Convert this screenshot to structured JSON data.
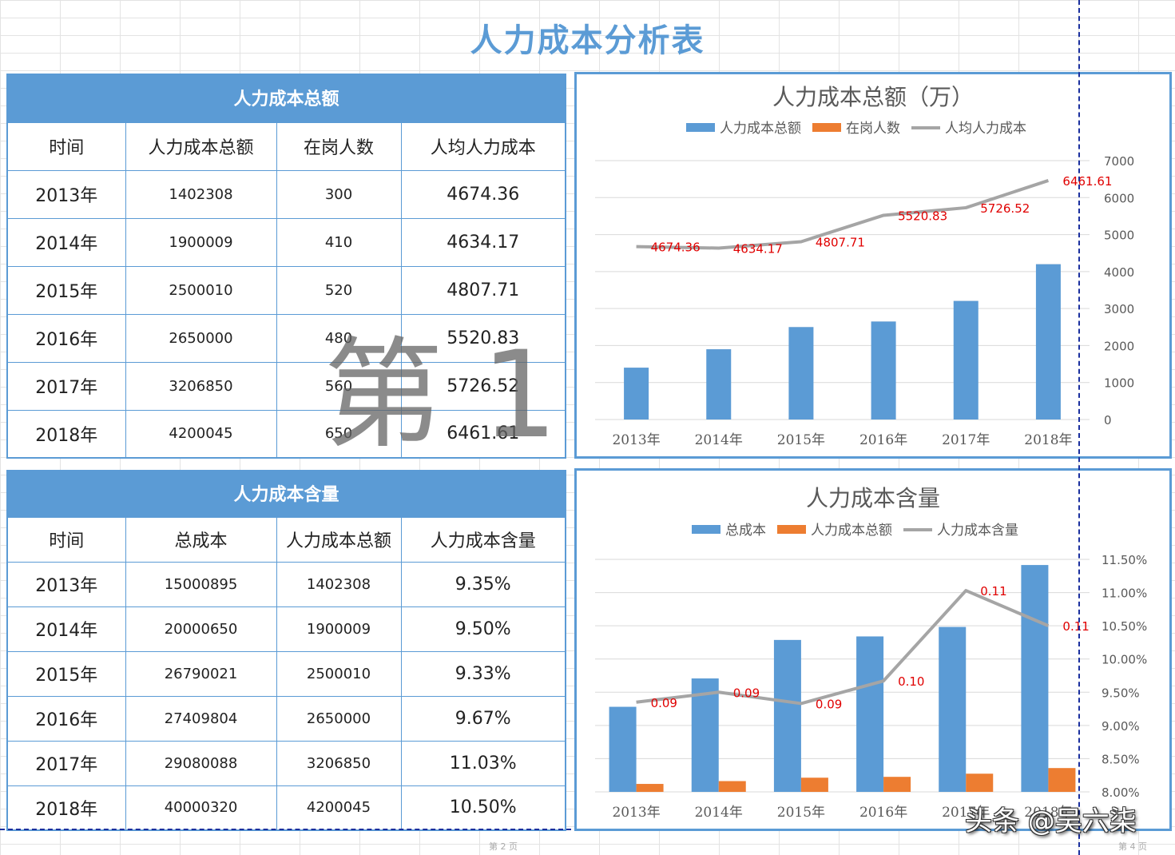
{
  "page_title": "人力成本分析表",
  "table1": {
    "title": "人力成本总额",
    "headers": [
      "时间",
      "人力成本总额",
      "在岗人数",
      "人均人力成本"
    ],
    "rows": [
      [
        "2013年",
        "1402308",
        "300",
        "4674.36"
      ],
      [
        "2014年",
        "1900009",
        "410",
        "4634.17"
      ],
      [
        "2015年",
        "2500010",
        "520",
        "4807.71"
      ],
      [
        "2016年",
        "2650000",
        "480",
        "5520.83"
      ],
      [
        "2017年",
        "3206850",
        "560",
        "5726.52"
      ],
      [
        "2018年",
        "4200045",
        "650",
        "6461.61"
      ]
    ]
  },
  "table2": {
    "title": "人力成本含量",
    "headers": [
      "时间",
      "总成本",
      "人力成本总额",
      "人力成本含量"
    ],
    "rows": [
      [
        "2013年",
        "15000895",
        "1402308",
        "9.35%"
      ],
      [
        "2014年",
        "20000650",
        "1900009",
        "9.50%"
      ],
      [
        "2015年",
        "26790021",
        "2500010",
        "9.33%"
      ],
      [
        "2016年",
        "27409804",
        "2650000",
        "9.67%"
      ],
      [
        "2017年",
        "29080088",
        "3206850",
        "11.03%"
      ],
      [
        "2018年",
        "40000320",
        "4200045",
        "10.50%"
      ]
    ]
  },
  "chart_data": [
    {
      "type": "bar",
      "title": "人力成本总额（万）",
      "categories": [
        "2013年",
        "2014年",
        "2015年",
        "2016年",
        "2017年",
        "2018年"
      ],
      "stacked": true,
      "bar_series": [
        {
          "name": "人力成本总额",
          "values": [
            1402308,
            1900009,
            2500010,
            2650000,
            3206850,
            4200045
          ],
          "color": "#5b9bd5"
        },
        {
          "name": "在岗人数",
          "values": [
            300,
            410,
            520,
            480,
            560,
            650
          ],
          "color": "#ed7d31"
        }
      ],
      "line_series": {
        "name": "人均人力成本",
        "values": [
          4674.36,
          4634.17,
          4807.71,
          5520.83,
          5726.52,
          6461.61
        ],
        "color": "#a5a5a5"
      },
      "line_labels": [
        "4674.36",
        "4634.17",
        "4807.71",
        "5520.83",
        "5726.52",
        "6461.61"
      ],
      "y_ticks": [
        "7000",
        "6000",
        "5000",
        "4000",
        "3000",
        "2000",
        "1000",
        "0"
      ],
      "ylim": [
        0,
        7000
      ],
      "grid": true,
      "legend": "top"
    },
    {
      "type": "bar",
      "title": "人力成本含量",
      "categories": [
        "2013年",
        "2014年",
        "2015年",
        "2016年",
        "2017年",
        "2018年"
      ],
      "bar_series": [
        {
          "name": "总成本",
          "values": [
            15000895,
            20000650,
            26790021,
            27409804,
            29080088,
            40000320
          ],
          "color": "#5b9bd5"
        },
        {
          "name": "人力成本总额",
          "values": [
            1402308,
            1900009,
            2500010,
            2650000,
            3206850,
            4200045
          ],
          "color": "#ed7d31"
        }
      ],
      "line_series": {
        "name": "人力成本含量",
        "values": [
          0.0935,
          0.095,
          0.0933,
          0.0967,
          0.1103,
          0.105
        ],
        "color": "#a5a5a5"
      },
      "line_labels": [
        "0.09",
        "0.09",
        "0.09",
        "0.10",
        "0.11",
        "0.11"
      ],
      "y_ticks": [
        "11.50%",
        "11.00%",
        "10.50%",
        "10.00%",
        "9.50%",
        "9.00%",
        "8.50%",
        "8.00%"
      ],
      "ylim": [
        0.08,
        0.115
      ],
      "grid": true,
      "legend": "top"
    }
  ],
  "overlays": {
    "watermark": "第 1",
    "page_mark_left": "第 2 页",
    "page_mark_right": "第 4 页",
    "toutiao": "头条 @吴六柒"
  },
  "colors": {
    "accent": "#5b9bd5",
    "orange": "#ed7d31",
    "gray": "#a5a5a5",
    "label_red": "#e00000"
  }
}
